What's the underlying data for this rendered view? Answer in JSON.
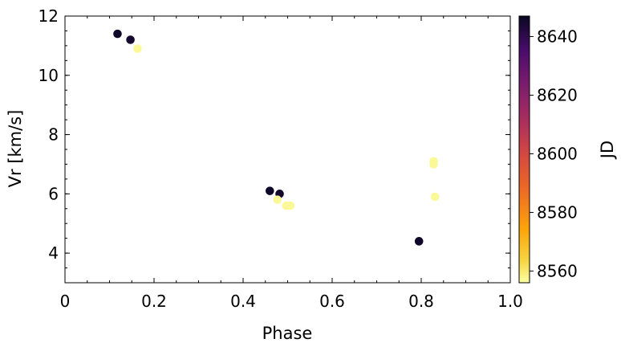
{
  "chart_data": {
    "type": "scatter",
    "xlabel": "Phase",
    "ylabel": "Vr [km/s]",
    "xlim": [
      0,
      1.0
    ],
    "ylim": [
      3,
      12
    ],
    "xticks": [
      "0",
      "0.2",
      "0.4",
      "0.6",
      "0.8",
      "1.0"
    ],
    "yticks": [
      "4",
      "6",
      "8",
      "10",
      "12"
    ],
    "grid": false,
    "colorbar": {
      "label": "JD",
      "range": [
        8556,
        8647
      ],
      "ticks": [
        "8560",
        "8580",
        "8600",
        "8620",
        "8640"
      ],
      "colormap": "inferno_r"
    },
    "points": [
      {
        "x": 0.118,
        "y": 11.4,
        "jd": 8646
      },
      {
        "x": 0.147,
        "y": 11.2,
        "jd": 8645
      },
      {
        "x": 0.163,
        "y": 10.9,
        "jd": 8557
      },
      {
        "x": 0.46,
        "y": 6.1,
        "jd": 8646
      },
      {
        "x": 0.482,
        "y": 6.0,
        "jd": 8645
      },
      {
        "x": 0.477,
        "y": 5.8,
        "jd": 8557
      },
      {
        "x": 0.497,
        "y": 5.6,
        "jd": 8557
      },
      {
        "x": 0.506,
        "y": 5.6,
        "jd": 8557
      },
      {
        "x": 0.795,
        "y": 4.4,
        "jd": 8646
      },
      {
        "x": 0.828,
        "y": 7.1,
        "jd": 8557
      },
      {
        "x": 0.828,
        "y": 7.0,
        "jd": 8557
      },
      {
        "x": 0.831,
        "y": 5.9,
        "jd": 8557
      }
    ]
  }
}
